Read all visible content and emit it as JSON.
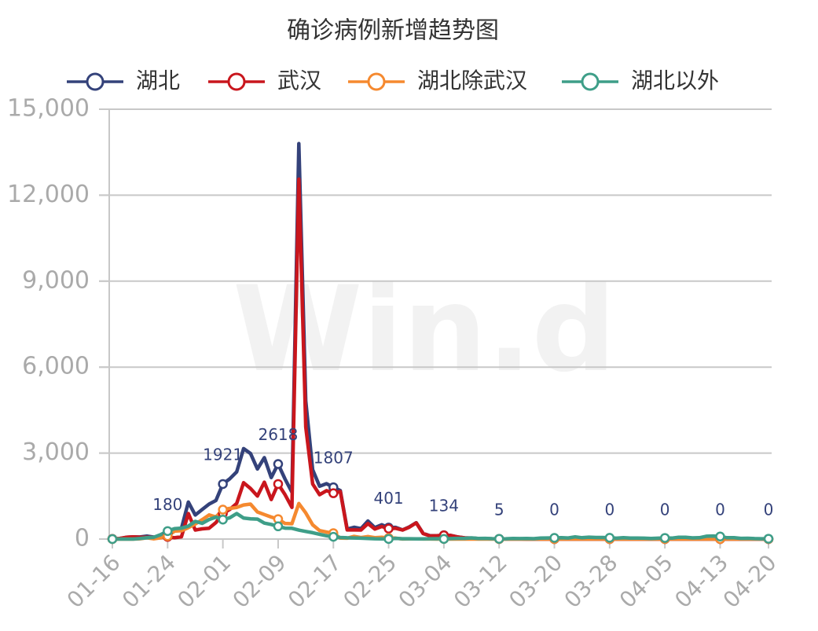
{
  "chart_data": {
    "type": "line",
    "title": "确诊病例新增趋势图",
    "watermark": "Win.d",
    "categories": [
      "01-16",
      null,
      null,
      null,
      null,
      null,
      null,
      null,
      "01-24",
      null,
      null,
      null,
      null,
      null,
      null,
      null,
      "02-01",
      null,
      null,
      null,
      null,
      null,
      null,
      null,
      "02-09",
      null,
      null,
      null,
      null,
      null,
      null,
      null,
      "02-17",
      null,
      null,
      null,
      null,
      null,
      null,
      null,
      "02-25",
      null,
      null,
      null,
      null,
      null,
      null,
      null,
      "03-04",
      null,
      null,
      null,
      null,
      null,
      null,
      null,
      "03-12",
      null,
      null,
      null,
      null,
      null,
      null,
      null,
      "03-20",
      null,
      null,
      null,
      null,
      null,
      null,
      null,
      "03-28",
      null,
      null,
      null,
      null,
      null,
      null,
      null,
      "04-05",
      null,
      null,
      null,
      null,
      null,
      null,
      null,
      "04-13",
      null,
      null,
      null,
      null,
      null,
      null,
      "04-20"
    ],
    "series": [
      {
        "name": "湖北",
        "color": "#34427a",
        "values": [
          4,
          17,
          59,
          77,
          72,
          105,
          69,
          105,
          180,
          323,
          371,
          1291,
          840,
          1032,
          1220,
          1347,
          1921,
          2103,
          2345,
          3156,
          2987,
          2447,
          2841,
          2147,
          2618,
          2097,
          1638,
          13800,
          4823,
          2420,
          1843,
          1933,
          1807,
          1693,
          349,
          411,
          366,
          630,
          398,
          499,
          401,
          409,
          318,
          423,
          570,
          196,
          114,
          115,
          134,
          126,
          74,
          41,
          36,
          17,
          13,
          8,
          5,
          4,
          4,
          4,
          1,
          1,
          0,
          0,
          0,
          0,
          0,
          0,
          0,
          0,
          0,
          0,
          0,
          0,
          0,
          0,
          0,
          0,
          0,
          0,
          0,
          0,
          0,
          0,
          0,
          0,
          0,
          0,
          0,
          0,
          0,
          0,
          0,
          0,
          0,
          0
        ]
      },
      {
        "name": "武汉",
        "color": "#c9161d",
        "values": [
          4,
          17,
          59,
          77,
          60,
          60,
          62,
          62,
          77,
          46,
          80,
          892,
          315,
          356,
          378,
          576,
          894,
          1033,
          1242,
          1967,
          1766,
          1501,
          1985,
          1379,
          1921,
          1552,
          1104,
          12560,
          3910,
          1923,
          1548,
          1690,
          1600,
          1660,
          319,
          319,
          314,
          541,
          348,
          439,
          364,
          375,
          314,
          415,
          565,
          193,
          111,
          114,
          131,
          126,
          71,
          41,
          36,
          17,
          13,
          7,
          5,
          4,
          4,
          4,
          1,
          1,
          0,
          0,
          0,
          0,
          0,
          0,
          0,
          0,
          0,
          0,
          0,
          0,
          0,
          0,
          0,
          0,
          0,
          0,
          0,
          0,
          0,
          0,
          0,
          0,
          0,
          0,
          0,
          0,
          0,
          0,
          0,
          0,
          0,
          0
        ]
      },
      {
        "name": "湖北除武汉",
        "color": "#f5892f",
        "values": [
          0,
          0,
          0,
          0,
          12,
          45,
          7,
          43,
          103,
          277,
          291,
          399,
          525,
          676,
          842,
          771,
          1027,
          1070,
          1103,
          1189,
          1221,
          946,
          856,
          768,
          697,
          545,
          534,
          1240,
          913,
          497,
          295,
          243,
          207,
          33,
          30,
          92,
          52,
          89,
          50,
          60,
          37,
          34,
          4,
          8,
          5,
          3,
          3,
          1,
          3,
          0,
          3,
          0,
          0,
          0,
          0,
          1,
          0,
          0,
          0,
          0,
          0,
          0,
          0,
          0,
          0,
          0,
          0,
          0,
          0,
          0,
          0,
          0,
          0,
          0,
          0,
          0,
          0,
          0,
          0,
          0,
          0,
          0,
          0,
          0,
          0,
          0,
          0,
          0,
          0,
          0,
          0,
          0,
          0,
          0,
          0,
          0
        ]
      },
      {
        "name": "湖北以外",
        "color": "#3e9e88",
        "values": [
          0,
          0,
          0,
          0,
          19,
          44,
          62,
          154,
          279,
          365,
          381,
          453,
          617,
          548,
          683,
          765,
          680,
          742,
          890,
          731,
          707,
          696,
          558,
          509,
          444,
          381,
          377,
          312,
          267,
          221,
          166,
          115,
          79,
          56,
          45,
          39,
          31,
          18,
          11,
          9,
          5,
          24,
          10,
          12,
          9,
          8,
          11,
          15,
          5,
          17,
          25,
          24,
          40,
          19,
          24,
          15,
          8,
          11,
          20,
          16,
          21,
          13,
          34,
          39,
          41,
          46,
          39,
          78,
          47,
          67,
          55,
          54,
          45,
          31,
          48,
          36,
          35,
          31,
          19,
          30,
          39,
          32,
          62,
          62,
          42,
          46,
          99,
          108,
          89,
          46,
          46,
          26,
          27,
          16,
          12,
          11
        ]
      }
    ],
    "ylim": [
      0,
      15000
    ],
    "yticks": [
      0,
      {
        "value": 3000,
        "label": "3,000"
      },
      {
        "value": 6000,
        "label": "6,000"
      },
      {
        "value": 9000,
        "label": "9,000"
      },
      {
        "value": 12000,
        "label": "12,000"
      },
      {
        "value": 15000,
        "label": "15,000"
      }
    ],
    "grid": true
  }
}
